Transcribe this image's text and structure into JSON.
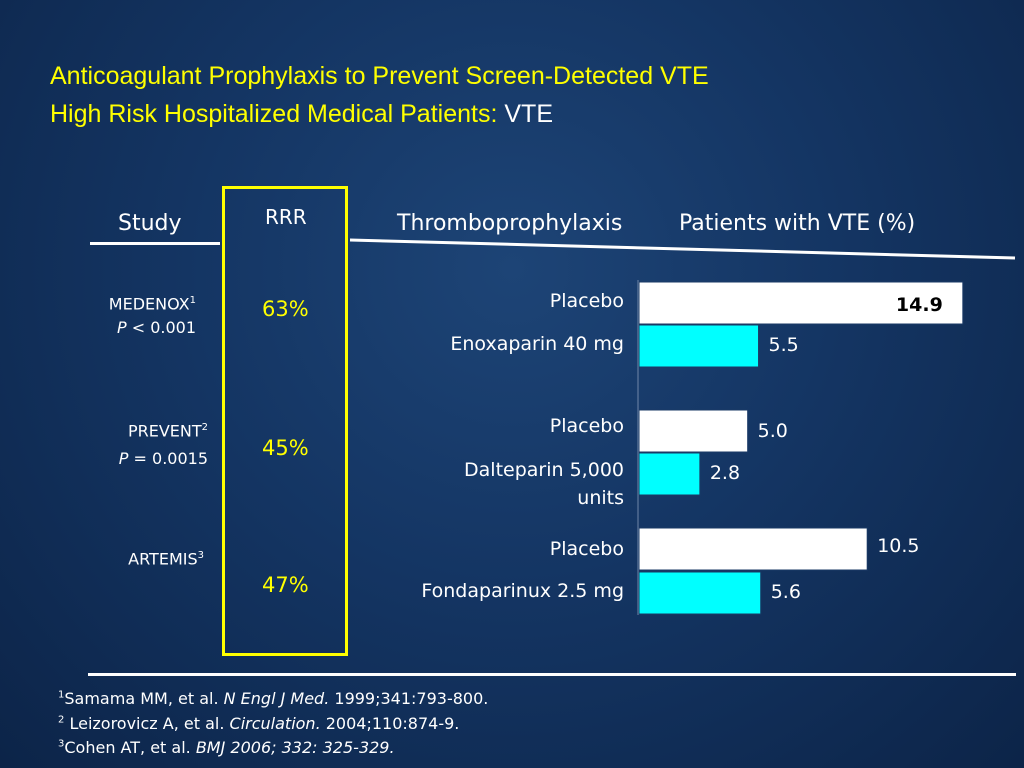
{
  "title": {
    "line1": "Anticoagulant Prophylaxis to Prevent Screen-Detected VTE",
    "line2_yellow": "High Risk Hospitalized Medical Patients:",
    "line2_white": "VTE"
  },
  "headers": {
    "study": "Study",
    "rrr": "RRR",
    "thrombo": "Thromboprophylaxis",
    "patients": "Patients with VTE (%)"
  },
  "studies": [
    {
      "name": "MEDENOX",
      "sup": "1",
      "p_italic": "P",
      "p_rest": " < 0.001",
      "rrr": "63%"
    },
    {
      "name": "PREVENT",
      "sup": "2",
      "p_italic": "P",
      "p_rest": " = 0.0015",
      "rrr": "45%"
    },
    {
      "name": "ARTEMIS",
      "sup": "3",
      "p_italic": "",
      "p_rest": "",
      "rrr": "47%"
    }
  ],
  "chart_data": {
    "type": "bar",
    "orientation": "horizontal",
    "categories": [
      "Placebo",
      "Enoxaparin 40 mg",
      "Placebo",
      "Dalteparin 5,000 units",
      "Placebo",
      "Fondaparinux 2.5 mg"
    ],
    "values": [
      14.9,
      5.5,
      5.0,
      2.8,
      10.5,
      5.6
    ],
    "value_labels": [
      "14.9",
      "5.5",
      "5.0",
      "2.8",
      "10.5",
      "5.6"
    ],
    "colors": [
      "#ffffff",
      "#00ffff",
      "#ffffff",
      "#00ffff",
      "#ffffff",
      "#00ffff"
    ],
    "title": "Patients with VTE (%)",
    "xlim": [
      0,
      15
    ],
    "grid": false
  },
  "references": [
    {
      "num": "1",
      "authors": "Samama MM, et al. ",
      "journal": "N Engl J Med.",
      "rest": " 1999;341:793-800."
    },
    {
      "num": "2",
      "authors": " Leizorovicz A, et al. ",
      "journal": "Circulation.",
      "rest": " 2004;110:874-9."
    },
    {
      "num": "3",
      "authors": "Cohen AT, et al. ",
      "journal": "BMJ 2006; 332: 325-329.",
      "rest": ""
    }
  ]
}
